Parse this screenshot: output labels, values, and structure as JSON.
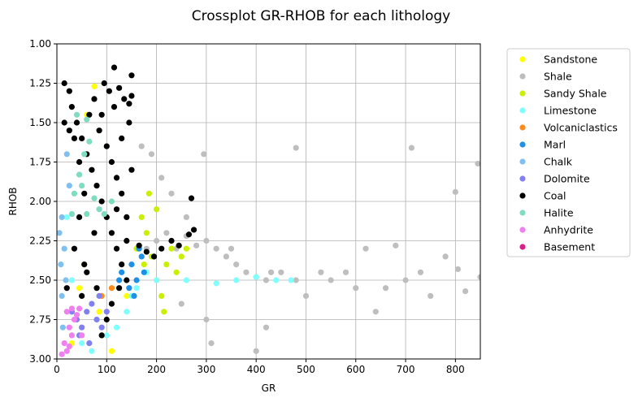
{
  "chart_data": {
    "type": "scatter",
    "title": "Crossplot GR-RHOB for each lithology",
    "xlabel": "GR",
    "ylabel": "RHOB",
    "xlim": [
      0,
      850
    ],
    "ylim": [
      3.0,
      1.0
    ],
    "y_inverted": true,
    "grid": true,
    "legend_position": "outside-right-top",
    "x_ticks": [
      0,
      100,
      200,
      300,
      400,
      500,
      600,
      700,
      800
    ],
    "x_tick_labels": [
      "0",
      "100",
      "200",
      "300",
      "400",
      "500",
      "600",
      "700",
      "800"
    ],
    "y_ticks": [
      1.0,
      1.25,
      1.5,
      1.75,
      2.0,
      2.25,
      2.5,
      2.75,
      3.0
    ],
    "y_tick_labels": [
      "1.00",
      "1.25",
      "1.50",
      "1.75",
      "2.00",
      "2.25",
      "2.50",
      "2.75",
      "3.00"
    ],
    "series": [
      {
        "name": "Sandstone",
        "color": "#ffff00",
        "points": [
          [
            75,
            1.27
          ],
          [
            60,
            1.45
          ],
          [
            45,
            2.55
          ],
          [
            90,
            2.85
          ],
          [
            110,
            2.95
          ],
          [
            140,
            2.6
          ],
          [
            160,
            2.3
          ],
          [
            30,
            2.9
          ],
          [
            85,
            2.7
          ],
          [
            55,
            2.4
          ]
        ]
      },
      {
        "name": "Shale",
        "color": "#bebebe",
        "points": [
          [
            180,
            2.3
          ],
          [
            200,
            2.25
          ],
          [
            220,
            2.2
          ],
          [
            240,
            2.3
          ],
          [
            260,
            2.22
          ],
          [
            280,
            2.28
          ],
          [
            300,
            2.25
          ],
          [
            320,
            2.3
          ],
          [
            340,
            2.35
          ],
          [
            360,
            2.4
          ],
          [
            380,
            2.45
          ],
          [
            400,
            2.48
          ],
          [
            420,
            2.5
          ],
          [
            450,
            2.45
          ],
          [
            480,
            1.66
          ],
          [
            480,
            2.5
          ],
          [
            500,
            2.6
          ],
          [
            530,
            2.45
          ],
          [
            550,
            2.5
          ],
          [
            580,
            2.45
          ],
          [
            600,
            2.55
          ],
          [
            620,
            2.3
          ],
          [
            640,
            2.7
          ],
          [
            660,
            2.55
          ],
          [
            680,
            2.28
          ],
          [
            700,
            2.5
          ],
          [
            712,
            1.66
          ],
          [
            730,
            2.45
          ],
          [
            750,
            2.6
          ],
          [
            780,
            2.35
          ],
          [
            800,
            1.94
          ],
          [
            805,
            2.43
          ],
          [
            820,
            2.57
          ],
          [
            845,
            1.76
          ],
          [
            850,
            2.48
          ],
          [
            170,
            1.65
          ],
          [
            190,
            1.7
          ],
          [
            210,
            1.85
          ],
          [
            295,
            1.7
          ],
          [
            250,
            2.65
          ],
          [
            300,
            2.75
          ],
          [
            310,
            2.9
          ],
          [
            400,
            2.95
          ],
          [
            420,
            2.8
          ],
          [
            430,
            2.45
          ],
          [
            350,
            2.3
          ],
          [
            260,
            2.1
          ],
          [
            230,
            1.95
          ]
        ]
      },
      {
        "name": "Sandy Shale",
        "color": "#c8f000",
        "points": [
          [
            160,
            2.3
          ],
          [
            170,
            2.1
          ],
          [
            180,
            2.2
          ],
          [
            190,
            2.35
          ],
          [
            200,
            2.5
          ],
          [
            210,
            2.6
          ],
          [
            220,
            2.4
          ],
          [
            230,
            2.3
          ],
          [
            240,
            2.45
          ],
          [
            250,
            2.35
          ],
          [
            200,
            2.05
          ],
          [
            185,
            1.95
          ],
          [
            175,
            2.4
          ],
          [
            215,
            2.7
          ],
          [
            260,
            2.3
          ]
        ]
      },
      {
        "name": "Limestone",
        "color": "#80ffff",
        "points": [
          [
            20,
            2.1
          ],
          [
            30,
            2.5
          ],
          [
            50,
            2.9
          ],
          [
            70,
            2.95
          ],
          [
            100,
            2.85
          ],
          [
            120,
            2.8
          ],
          [
            140,
            2.7
          ],
          [
            160,
            2.55
          ],
          [
            200,
            2.5
          ],
          [
            260,
            2.5
          ],
          [
            320,
            2.52
          ],
          [
            360,
            2.5
          ],
          [
            400,
            2.48
          ],
          [
            440,
            2.5
          ],
          [
            470,
            2.5
          ],
          [
            180,
            2.45
          ],
          [
            150,
            2.6
          ],
          [
            80,
            2.75
          ]
        ]
      },
      {
        "name": "Volcaniclastics",
        "color": "#ff8c1a",
        "points": [
          [
            90,
            2.6
          ],
          [
            110,
            2.55
          ]
        ]
      },
      {
        "name": "Marl",
        "color": "#1e90e6",
        "points": [
          [
            130,
            2.45
          ],
          [
            150,
            2.4
          ],
          [
            160,
            2.5
          ],
          [
            170,
            2.35
          ],
          [
            145,
            2.55
          ],
          [
            175,
            2.45
          ],
          [
            155,
            2.6
          ],
          [
            125,
            2.5
          ],
          [
            165,
            2.3
          ]
        ]
      },
      {
        "name": "Chalk",
        "color": "#80c0f0",
        "points": [
          [
            5,
            2.2
          ],
          [
            8,
            2.4
          ],
          [
            10,
            2.6
          ],
          [
            12,
            2.8
          ],
          [
            15,
            2.3
          ],
          [
            20,
            1.7
          ],
          [
            25,
            1.9
          ],
          [
            10,
            2.1
          ],
          [
            18,
            2.5
          ],
          [
            30,
            2.7
          ]
        ]
      },
      {
        "name": "Dolomite",
        "color": "#8080f0",
        "points": [
          [
            30,
            2.7
          ],
          [
            40,
            2.75
          ],
          [
            50,
            2.8
          ],
          [
            60,
            2.7
          ],
          [
            70,
            2.65
          ],
          [
            80,
            2.75
          ],
          [
            90,
            2.8
          ],
          [
            100,
            2.7
          ],
          [
            45,
            2.85
          ],
          [
            65,
            2.9
          ],
          [
            85,
            2.6
          ]
        ]
      },
      {
        "name": "Coal",
        "color": "#000000",
        "points": [
          [
            15,
            1.25
          ],
          [
            25,
            1.3
          ],
          [
            30,
            1.4
          ],
          [
            40,
            1.5
          ],
          [
            50,
            1.6
          ],
          [
            60,
            1.7
          ],
          [
            70,
            1.8
          ],
          [
            80,
            1.9
          ],
          [
            90,
            2.0
          ],
          [
            100,
            2.1
          ],
          [
            110,
            2.2
          ],
          [
            120,
            2.3
          ],
          [
            130,
            2.4
          ],
          [
            140,
            2.5
          ],
          [
            20,
            2.55
          ],
          [
            35,
            2.3
          ],
          [
            45,
            2.1
          ],
          [
            55,
            1.95
          ],
          [
            65,
            1.45
          ],
          [
            75,
            1.35
          ],
          [
            85,
            1.55
          ],
          [
            95,
            1.25
          ],
          [
            105,
            1.3
          ],
          [
            115,
            1.4
          ],
          [
            125,
            1.28
          ],
          [
            135,
            1.35
          ],
          [
            145,
            1.38
          ],
          [
            150,
            1.33
          ],
          [
            150,
            1.8
          ],
          [
            140,
            2.1
          ],
          [
            130,
            1.95
          ],
          [
            125,
            2.55
          ],
          [
            110,
            2.65
          ],
          [
            100,
            2.75
          ],
          [
            90,
            2.85
          ],
          [
            80,
            2.55
          ],
          [
            60,
            2.45
          ],
          [
            50,
            2.6
          ],
          [
            270,
            1.98
          ],
          [
            275,
            2.18
          ],
          [
            265,
            2.21
          ],
          [
            245,
            2.28
          ],
          [
            230,
            2.25
          ],
          [
            210,
            2.3
          ],
          [
            195,
            2.35
          ],
          [
            180,
            2.32
          ],
          [
            165,
            2.28
          ],
          [
            140,
            2.25
          ],
          [
            100,
            1.65
          ],
          [
            110,
            1.75
          ],
          [
            120,
            1.85
          ],
          [
            75,
            2.2
          ],
          [
            55,
            2.4
          ],
          [
            45,
            1.75
          ],
          [
            35,
            1.6
          ],
          [
            25,
            1.55
          ],
          [
            15,
            1.5
          ],
          [
            120,
            2.05
          ],
          [
            150,
            1.2
          ],
          [
            145,
            1.5
          ],
          [
            130,
            1.6
          ],
          [
            115,
            1.15
          ],
          [
            90,
            1.45
          ]
        ]
      },
      {
        "name": "Halite",
        "color": "#80dcc0",
        "points": [
          [
            35,
            1.95
          ],
          [
            45,
            1.83
          ],
          [
            50,
            1.9
          ],
          [
            55,
            1.7
          ],
          [
            65,
            1.62
          ],
          [
            30,
            2.08
          ],
          [
            60,
            2.08
          ],
          [
            75,
            1.98
          ],
          [
            85,
            2.05
          ],
          [
            95,
            2.08
          ],
          [
            110,
            2.0
          ],
          [
            40,
            1.45
          ],
          [
            60,
            1.48
          ]
        ]
      },
      {
        "name": "Anhydrite",
        "color": "#f080f0",
        "points": [
          [
            20,
            2.7
          ],
          [
            25,
            2.8
          ],
          [
            30,
            2.68
          ],
          [
            35,
            2.75
          ],
          [
            40,
            2.72
          ],
          [
            15,
            2.9
          ],
          [
            20,
            2.95
          ],
          [
            25,
            2.92
          ],
          [
            30,
            2.85
          ],
          [
            10,
            2.97
          ],
          [
            45,
            2.68
          ],
          [
            50,
            2.85
          ]
        ]
      },
      {
        "name": "Basement",
        "color": "#dc1e8c",
        "points": []
      }
    ]
  }
}
